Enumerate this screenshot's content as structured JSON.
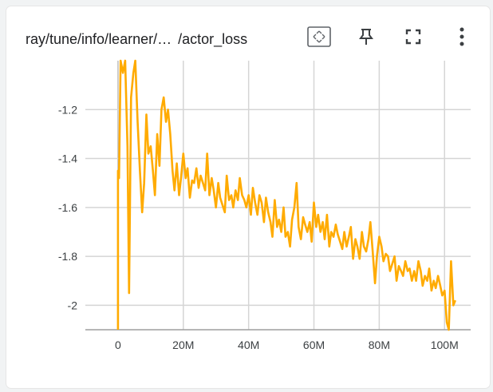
{
  "card": {
    "title_left": "ray/tune/info/learner/…",
    "title_right": "/actor_loss"
  },
  "toolbar": {
    "fit_icon": "fit-domain-icon",
    "pin_icon": "pin-icon",
    "fullscreen_icon": "fullscreen-icon",
    "menu_icon": "more-vert-icon"
  },
  "colors": {
    "series": "#ffab00",
    "grid": "#d5d5d5",
    "zero_axis": "#bdbdbd"
  },
  "chart_data": {
    "type": "line",
    "title": "ray/tune/info/learner/… /actor_loss",
    "xlabel": "",
    "ylabel": "",
    "xlim": [
      -10000000,
      108000000
    ],
    "ylim": [
      -2.1,
      -1.0
    ],
    "xticks": [
      0,
      20000000,
      40000000,
      60000000,
      80000000,
      100000000
    ],
    "xtick_labels": [
      "0",
      "20M",
      "40M",
      "60M",
      "80M",
      "100M"
    ],
    "yticks": [
      -1.2,
      -1.4,
      -1.6,
      -1.8,
      -2.0
    ],
    "ytick_labels": [
      "-1.2",
      "-1.4",
      "-1.6",
      "-1.8",
      "-2"
    ],
    "grid": true,
    "legend": "none",
    "series": [
      {
        "values": [
          [
            0,
            -2.1
          ],
          [
            0,
            -1.45
          ],
          [
            300000,
            -1.48
          ],
          [
            800000,
            -1.0
          ],
          [
            1500000,
            -1.05
          ],
          [
            2200000,
            -1.0
          ],
          [
            2900000,
            -1.35
          ],
          [
            3400000,
            -1.95
          ],
          [
            4000000,
            -1.15
          ],
          [
            4700000,
            -1.05
          ],
          [
            5300000,
            -1.0
          ],
          [
            6000000,
            -1.25
          ],
          [
            6700000,
            -1.45
          ],
          [
            7400000,
            -1.62
          ],
          [
            8000000,
            -1.5
          ],
          [
            8700000,
            -1.22
          ],
          [
            9300000,
            -1.38
          ],
          [
            10000000,
            -1.35
          ],
          [
            10700000,
            -1.45
          ],
          [
            11300000,
            -1.55
          ],
          [
            12000000,
            -1.3
          ],
          [
            12700000,
            -1.43
          ],
          [
            13300000,
            -1.2
          ],
          [
            14000000,
            -1.15
          ],
          [
            14700000,
            -1.25
          ],
          [
            15300000,
            -1.2
          ],
          [
            16000000,
            -1.3
          ],
          [
            16700000,
            -1.45
          ],
          [
            17300000,
            -1.53
          ],
          [
            18000000,
            -1.42
          ],
          [
            18700000,
            -1.55
          ],
          [
            19300000,
            -1.48
          ],
          [
            20000000,
            -1.38
          ],
          [
            20700000,
            -1.48
          ],
          [
            21300000,
            -1.44
          ],
          [
            22000000,
            -1.56
          ],
          [
            22700000,
            -1.49
          ],
          [
            23300000,
            -1.5
          ],
          [
            24000000,
            -1.44
          ],
          [
            24700000,
            -1.52
          ],
          [
            25300000,
            -1.47
          ],
          [
            26000000,
            -1.5
          ],
          [
            26700000,
            -1.53
          ],
          [
            27300000,
            -1.38
          ],
          [
            28000000,
            -1.55
          ],
          [
            28700000,
            -1.48
          ],
          [
            29300000,
            -1.53
          ],
          [
            30000000,
            -1.6
          ],
          [
            30700000,
            -1.5
          ],
          [
            31300000,
            -1.56
          ],
          [
            32000000,
            -1.59
          ],
          [
            32700000,
            -1.62
          ],
          [
            33300000,
            -1.47
          ],
          [
            34000000,
            -1.57
          ],
          [
            34700000,
            -1.55
          ],
          [
            35300000,
            -1.6
          ],
          [
            36000000,
            -1.53
          ],
          [
            36700000,
            -1.57
          ],
          [
            37300000,
            -1.48
          ],
          [
            38000000,
            -1.55
          ],
          [
            38700000,
            -1.57
          ],
          [
            39300000,
            -1.6
          ],
          [
            40000000,
            -1.55
          ],
          [
            40700000,
            -1.63
          ],
          [
            41300000,
            -1.52
          ],
          [
            42000000,
            -1.58
          ],
          [
            42700000,
            -1.63
          ],
          [
            43300000,
            -1.55
          ],
          [
            44000000,
            -1.58
          ],
          [
            44700000,
            -1.66
          ],
          [
            45300000,
            -1.56
          ],
          [
            46000000,
            -1.62
          ],
          [
            46700000,
            -1.66
          ],
          [
            47300000,
            -1.72
          ],
          [
            48000000,
            -1.57
          ],
          [
            48700000,
            -1.68
          ],
          [
            49300000,
            -1.65
          ],
          [
            50000000,
            -1.7
          ],
          [
            50700000,
            -1.6
          ],
          [
            51300000,
            -1.72
          ],
          [
            52000000,
            -1.7
          ],
          [
            52700000,
            -1.76
          ],
          [
            53300000,
            -1.65
          ],
          [
            54000000,
            -1.6
          ],
          [
            54700000,
            -1.5
          ],
          [
            55300000,
            -1.68
          ],
          [
            56000000,
            -1.73
          ],
          [
            56700000,
            -1.64
          ],
          [
            57300000,
            -1.67
          ],
          [
            58000000,
            -1.7
          ],
          [
            58700000,
            -1.66
          ],
          [
            59300000,
            -1.74
          ],
          [
            60000000,
            -1.58
          ],
          [
            60700000,
            -1.68
          ],
          [
            61300000,
            -1.63
          ],
          [
            62000000,
            -1.7
          ],
          [
            62700000,
            -1.66
          ],
          [
            63300000,
            -1.73
          ],
          [
            64000000,
            -1.63
          ],
          [
            64700000,
            -1.76
          ],
          [
            65300000,
            -1.7
          ],
          [
            66000000,
            -1.72
          ],
          [
            66700000,
            -1.67
          ],
          [
            67300000,
            -1.71
          ],
          [
            68000000,
            -1.74
          ],
          [
            68700000,
            -1.77
          ],
          [
            69300000,
            -1.7
          ],
          [
            70000000,
            -1.76
          ],
          [
            70700000,
            -1.72
          ],
          [
            71300000,
            -1.68
          ],
          [
            72000000,
            -1.81
          ],
          [
            72700000,
            -1.73
          ],
          [
            73300000,
            -1.76
          ],
          [
            74000000,
            -1.81
          ],
          [
            74700000,
            -1.7
          ],
          [
            75300000,
            -1.76
          ],
          [
            76000000,
            -1.78
          ],
          [
            76700000,
            -1.73
          ],
          [
            77300000,
            -1.66
          ],
          [
            78000000,
            -1.78
          ],
          [
            78700000,
            -1.91
          ],
          [
            79300000,
            -1.8
          ],
          [
            80000000,
            -1.72
          ],
          [
            80700000,
            -1.76
          ],
          [
            81300000,
            -1.82
          ],
          [
            82000000,
            -1.79
          ],
          [
            82700000,
            -1.8
          ],
          [
            83300000,
            -1.86
          ],
          [
            84000000,
            -1.83
          ],
          [
            84700000,
            -1.8
          ],
          [
            85300000,
            -1.9
          ],
          [
            86000000,
            -1.84
          ],
          [
            86700000,
            -1.86
          ],
          [
            87300000,
            -1.88
          ],
          [
            88000000,
            -1.82
          ],
          [
            88700000,
            -1.86
          ],
          [
            89300000,
            -1.85
          ],
          [
            90000000,
            -1.9
          ],
          [
            90700000,
            -1.86
          ],
          [
            91300000,
            -1.9
          ],
          [
            92000000,
            -1.82
          ],
          [
            92700000,
            -1.86
          ],
          [
            93300000,
            -1.92
          ],
          [
            94000000,
            -1.88
          ],
          [
            94700000,
            -1.9
          ],
          [
            95300000,
            -1.85
          ],
          [
            96000000,
            -1.94
          ],
          [
            96700000,
            -1.9
          ],
          [
            97300000,
            -1.93
          ],
          [
            98000000,
            -1.88
          ],
          [
            98700000,
            -1.92
          ],
          [
            99300000,
            -1.96
          ],
          [
            100000000,
            -1.94
          ],
          [
            100700000,
            -2.07
          ],
          [
            101300000,
            -2.1
          ],
          [
            102000000,
            -1.82
          ],
          [
            102700000,
            -2.0
          ],
          [
            103300000,
            -1.98
          ]
        ]
      }
    ]
  }
}
